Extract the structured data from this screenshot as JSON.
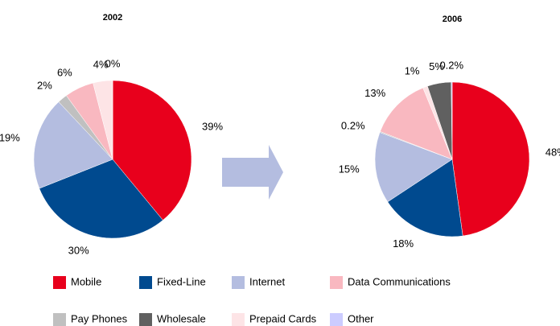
{
  "chart_data": [
    {
      "type": "pie",
      "title": "2002",
      "values": [
        39,
        30,
        19,
        2,
        6,
        4,
        0
      ],
      "value_labels": [
        "39%",
        "30%",
        "19%",
        "2%",
        "6%",
        "4%",
        "0%"
      ],
      "colors": [
        "#e8001c",
        "#004a8f",
        "#b4bde0",
        "#c0c0c0",
        "#f9b8c0",
        "#fde4e6",
        "#ccccff"
      ]
    },
    {
      "type": "pie",
      "title": "2006",
      "values": [
        48,
        18,
        15,
        0.2,
        13,
        1,
        5,
        0.2
      ],
      "value_labels": [
        "48%",
        "18%",
        "15%",
        "0.2%",
        "13%",
        "1%",
        "5%",
        "0.2%"
      ],
      "colors": [
        "#e8001c",
        "#004a8f",
        "#b4bde0",
        "#c0c0c0",
        "#f9b8c0",
        "#fde4e6",
        "#606060",
        "#ccccff"
      ]
    }
  ],
  "legend": [
    {
      "name": "Mobile",
      "color": "#e8001c"
    },
    {
      "name": "Fixed-Line",
      "color": "#004a8f"
    },
    {
      "name": "Internet",
      "color": "#b4bde0"
    },
    {
      "name": "Data Communications",
      "color": "#f9b8c0"
    },
    {
      "name": "Pay Phones",
      "color": "#c0c0c0"
    },
    {
      "name": "Wholesale",
      "color": "#606060"
    },
    {
      "name": "Prepaid Cards",
      "color": "#fde4e6"
    },
    {
      "name": "Other",
      "color": "#ccccff"
    }
  ]
}
